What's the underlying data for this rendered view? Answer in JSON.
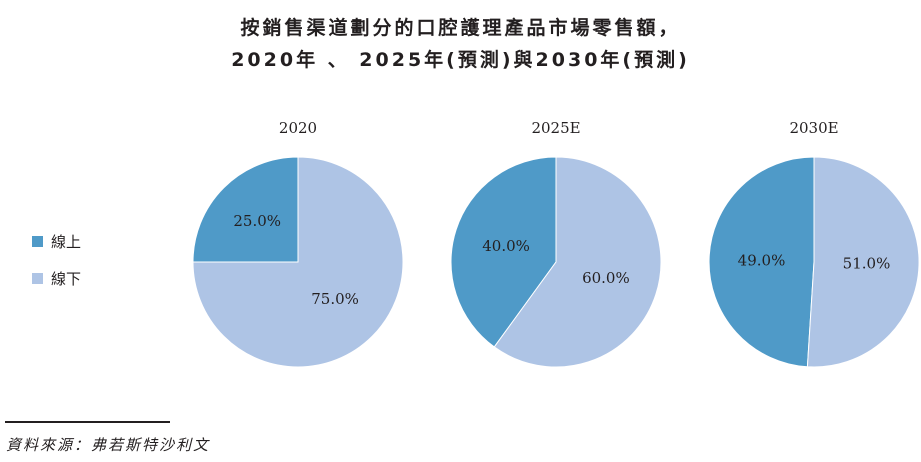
{
  "title_line1": "按銷售渠道劃分的口腔護理產品市場零售額，",
  "title_line2": "2020年 、 2025年(預測)與2030年(預測)",
  "legend": [
    {
      "label": "線上",
      "color": "#4f9ac8"
    },
    {
      "label": "線下",
      "color": "#aec4e5"
    }
  ],
  "source": "資料來源：弗若斯特沙利文",
  "chart_data": {
    "type": "pie",
    "series_names": [
      "線上",
      "線下"
    ],
    "colors": [
      "#4f9ac8",
      "#aec4e5"
    ],
    "pies": [
      {
        "title": "2020",
        "values": [
          25.0,
          75.0
        ],
        "labels": [
          "25.0%",
          "75.0%"
        ]
      },
      {
        "title": "2025E",
        "values": [
          40.0,
          60.0
        ],
        "labels": [
          "40.0%",
          "60.0%"
        ]
      },
      {
        "title": "2030E",
        "values": [
          49.0,
          51.0
        ],
        "labels": [
          "49.0%",
          "51.0%"
        ]
      }
    ]
  }
}
